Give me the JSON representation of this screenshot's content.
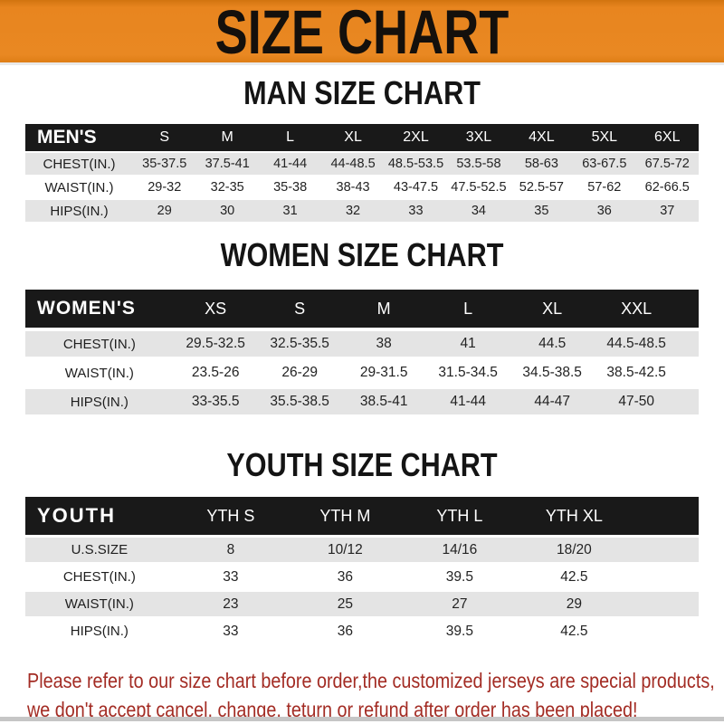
{
  "banner": {
    "title": "SIZE CHART"
  },
  "colors": {
    "banner_orange": "#E8851F",
    "table_header_black": "#191919",
    "row_stripe_gray": "#E4E4E4",
    "notice_red": "#A32C24"
  },
  "sections": [
    {
      "heading": "MAN SIZE CHART",
      "label": "MEN'S",
      "columns": [
        "S",
        "M",
        "L",
        "XL",
        "2XL",
        "3XL",
        "4XL",
        "5XL",
        "6XL"
      ],
      "rows": [
        {
          "label": "CHEST(IN.)",
          "values": [
            "35-37.5",
            "37.5-41",
            "41-44",
            "44-48.5",
            "48.5-53.5",
            "53.5-58",
            "58-63",
            "63-67.5",
            "67.5-72"
          ]
        },
        {
          "label": "WAIST(IN.)",
          "values": [
            "29-32",
            "32-35",
            "35-38",
            "38-43",
            "43-47.5",
            "47.5-52.5",
            "52.5-57",
            "57-62",
            "62-66.5"
          ]
        },
        {
          "label": "HIPS(IN.)",
          "values": [
            "29",
            "30",
            "31",
            "32",
            "33",
            "34",
            "35",
            "36",
            "37"
          ]
        }
      ]
    },
    {
      "heading": "WOMEN SIZE CHART",
      "label": "WOMEN'S",
      "columns": [
        "XS",
        "S",
        "M",
        "L",
        "XL",
        "XXL"
      ],
      "rows": [
        {
          "label": "CHEST(IN.)",
          "values": [
            "29.5-32.5",
            "32.5-35.5",
            "38",
            "41",
            "44.5",
            "44.5-48.5"
          ]
        },
        {
          "label": "WAIST(IN.)",
          "values": [
            "23.5-26",
            "26-29",
            "29-31.5",
            "31.5-34.5",
            "34.5-38.5",
            "38.5-42.5"
          ]
        },
        {
          "label": "HIPS(IN.)",
          "values": [
            "33-35.5",
            "35.5-38.5",
            "38.5-41",
            "41-44",
            "44-47",
            "47-50"
          ]
        }
      ]
    },
    {
      "heading": "YOUTH SIZE CHART",
      "label": "YOUTH",
      "columns": [
        "YTH S",
        "YTH M",
        "YTH L",
        "YTH XL"
      ],
      "rows": [
        {
          "label": "U.S.SIZE",
          "values": [
            "8",
            "10/12",
            "14/16",
            "18/20"
          ]
        },
        {
          "label": "CHEST(IN.)",
          "values": [
            "33",
            "36",
            "39.5",
            "42.5"
          ]
        },
        {
          "label": "WAIST(IN.)",
          "values": [
            "23",
            "25",
            "27",
            "29"
          ]
        },
        {
          "label": "HIPS(IN.)",
          "values": [
            "33",
            "36",
            "39.5",
            "42.5"
          ]
        }
      ]
    }
  ],
  "footer": {
    "line1": "Please refer to our size chart before order,the customized jerseys are special products,",
    "line2": "we don't accept cancel, change, teturn or refund after order has been placed!"
  }
}
